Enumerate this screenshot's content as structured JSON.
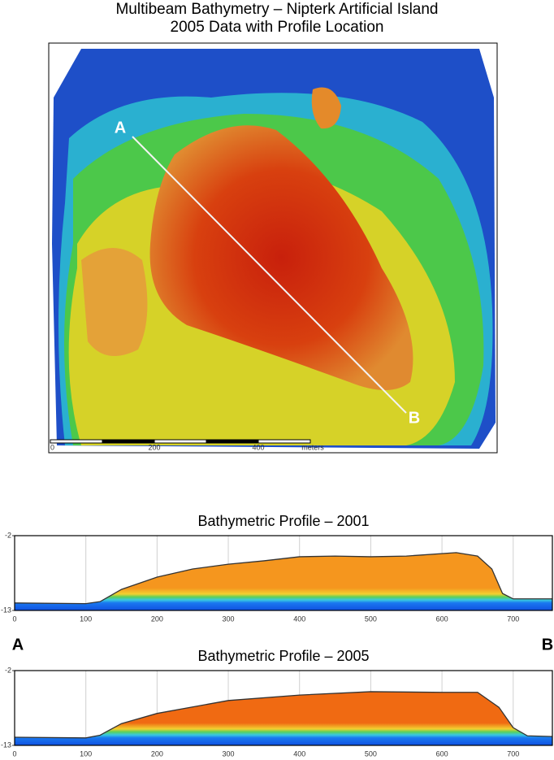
{
  "title_lines": [
    "Multibeam Bathymetry – Nipterk Artificial Island",
    "2005 Data with Profile Location"
  ],
  "map": {
    "point_labels": [
      "A",
      "B"
    ],
    "scale_labels": [
      "0",
      "200",
      "400",
      "meters"
    ]
  },
  "profile_end_labels": [
    "A",
    "B"
  ],
  "chart_data": [
    {
      "type": "area",
      "title": "Bathymetric Profile – 2001",
      "color": "#f5961e",
      "line_color": "#333333",
      "grid": true,
      "x": [
        0,
        100,
        120,
        150,
        200,
        250,
        300,
        350,
        400,
        450,
        500,
        550,
        620,
        650,
        670,
        685,
        700,
        755
      ],
      "values": [
        -11.9,
        -12,
        -11.7,
        -9.9,
        -8.1,
        -6.9,
        -6.2,
        -5.7,
        -5.1,
        -5.0,
        -5.1,
        -5.0,
        -4.5,
        -5.0,
        -6.9,
        -10.5,
        -11.3,
        -11.3
      ],
      "xlim": [
        0,
        755
      ],
      "xticks": [
        0,
        100,
        200,
        300,
        400,
        500,
        600,
        700
      ],
      "ylim": [
        -13,
        -2
      ],
      "yticks": [
        -2,
        -13
      ]
    },
    {
      "type": "area",
      "title": "Bathymetric Profile – 2005",
      "color": "#f06a12",
      "line_color": "#333333",
      "grid": true,
      "x": [
        0,
        100,
        120,
        150,
        200,
        300,
        400,
        500,
        600,
        650,
        680,
        700,
        720,
        755
      ],
      "values": [
        -11.8,
        -11.9,
        -11.5,
        -9.8,
        -8.3,
        -6.4,
        -5.6,
        -5.1,
        -5.2,
        -5.2,
        -7.4,
        -10.4,
        -11.6,
        -11.7
      ],
      "xlim": [
        0,
        755
      ],
      "xticks": [
        0,
        100,
        200,
        300,
        400,
        500,
        600,
        700
      ],
      "ylim": [
        -13,
        -2
      ],
      "yticks": [
        -2,
        -13
      ]
    }
  ]
}
